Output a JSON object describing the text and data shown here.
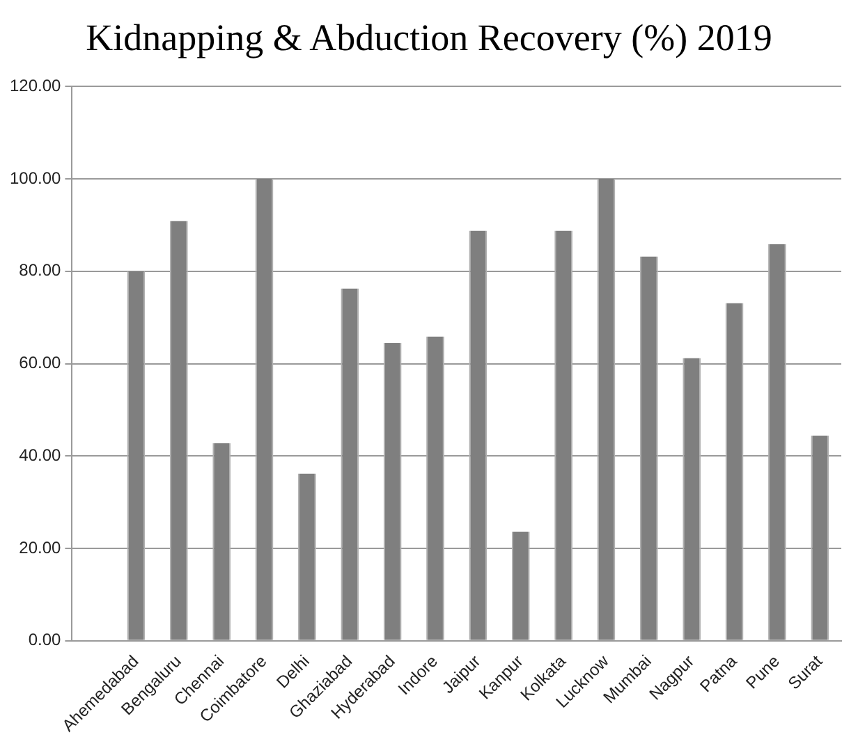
{
  "chart_data": {
    "type": "bar",
    "title": "Kidnapping & Abduction Recovery (%) 2019",
    "categories": [
      null,
      "Ahemedabad",
      "Bengaluru",
      "Chennai",
      "Coimbatore",
      "Delhi",
      "Ghaziabad",
      "Hyderabad",
      "Indore",
      "Jaipur",
      "Kanpur",
      "Kolkata",
      "Lucknow",
      "Mumbai",
      "Nagpur",
      "Patna",
      "Pune",
      "Surat"
    ],
    "values": [
      null,
      80,
      90.9,
      42.8,
      100,
      36.2,
      76.3,
      64.5,
      65.9,
      88.8,
      23.6,
      88.8,
      100,
      83.2,
      61.2,
      73.1,
      85.9,
      44.4
    ],
    "color": "#7f7f7f",
    "ylim": [
      0,
      120
    ],
    "yticks": [
      {
        "value": 0,
        "label": "0.00"
      },
      {
        "value": 20,
        "label": "20.00"
      },
      {
        "value": 40,
        "label": "40.00"
      },
      {
        "value": 60,
        "label": "60.00"
      },
      {
        "value": 80,
        "label": "80.00"
      },
      {
        "value": 100,
        "label": "100.00"
      },
      {
        "value": 120,
        "label": "120.00"
      }
    ],
    "grid": "y",
    "legend": false
  }
}
